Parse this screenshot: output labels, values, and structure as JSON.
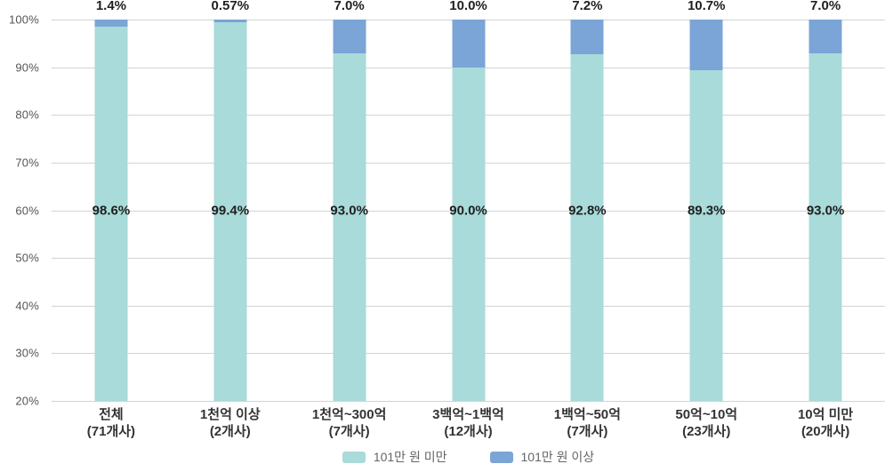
{
  "chart_data": {
    "type": "bar",
    "variant": "stacked-100",
    "title": "",
    "xlabel": "",
    "ylabel": "",
    "grid": true,
    "legend_position": "bottom",
    "colors": {
      "under_101": "#a8dbd9",
      "over_101": "#7ba4d7",
      "gridline": "#d3d3d3"
    },
    "y_axis": {
      "min": 20,
      "max": 100,
      "step": 10,
      "ticks": [
        "100%",
        "90%",
        "80%",
        "70%",
        "60%",
        "50%",
        "40%",
        "30%",
        "20%"
      ]
    },
    "categories": [
      {
        "label": "전체",
        "count": "(71개사)"
      },
      {
        "label": "1천억 이상",
        "count": "(2개사)"
      },
      {
        "label": "1천억~300억",
        "count": "(7개사)"
      },
      {
        "label": "3백억~1백억",
        "count": "(12개사)"
      },
      {
        "label": "1백억~50억",
        "count": "(7개사)"
      },
      {
        "label": "50억~10억",
        "count": "(23개사)"
      },
      {
        "label": "10억 미만",
        "count": "(20개사)"
      }
    ],
    "series": [
      {
        "name": "101만 원 미만",
        "color": "#a8dbd9",
        "values": [
          98.6,
          99.4,
          93.0,
          90.0,
          92.8,
          89.3,
          93.0
        ]
      },
      {
        "name": "101만 원 이상",
        "color": "#7ba4d7",
        "values": [
          1.4,
          0.57,
          7.0,
          10.0,
          7.2,
          10.7,
          7.0
        ]
      }
    ],
    "above_bar_labels": [
      "1.4%",
      "0.57%",
      "7.0%",
      "10.0%",
      "7.2%",
      "10.7%",
      "7.0%"
    ],
    "inner_bar_labels": [
      "98.6%",
      "99.4%",
      "93.0%",
      "90.0%",
      "92.8%",
      "89.3%",
      "93.0%"
    ]
  }
}
